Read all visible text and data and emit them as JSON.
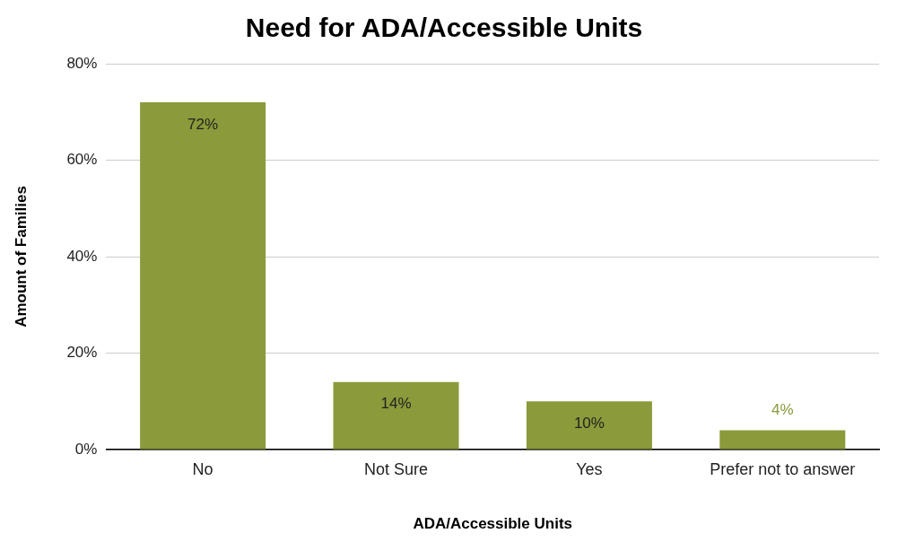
{
  "chart_data": {
    "type": "bar",
    "title": "Need for ADA/Accessible Units",
    "xlabel": "ADA/Accessible Units",
    "ylabel": "Amount of Families",
    "categories": [
      "No",
      "Not Sure",
      "Yes",
      "Prefer not to answer"
    ],
    "values": [
      72,
      14,
      10,
      4
    ],
    "value_labels": [
      "72%",
      "14%",
      "10%",
      "4%"
    ],
    "color": "#8b9a3a",
    "ylim": [
      0,
      80
    ],
    "yticks": [
      {
        "value": 0,
        "label": "0%"
      },
      {
        "value": 20,
        "label": "20%"
      },
      {
        "value": 40,
        "label": "40%"
      },
      {
        "value": 60,
        "label": "60%"
      },
      {
        "value": 80,
        "label": "80%"
      }
    ],
    "grid": "y",
    "legend": false
  }
}
